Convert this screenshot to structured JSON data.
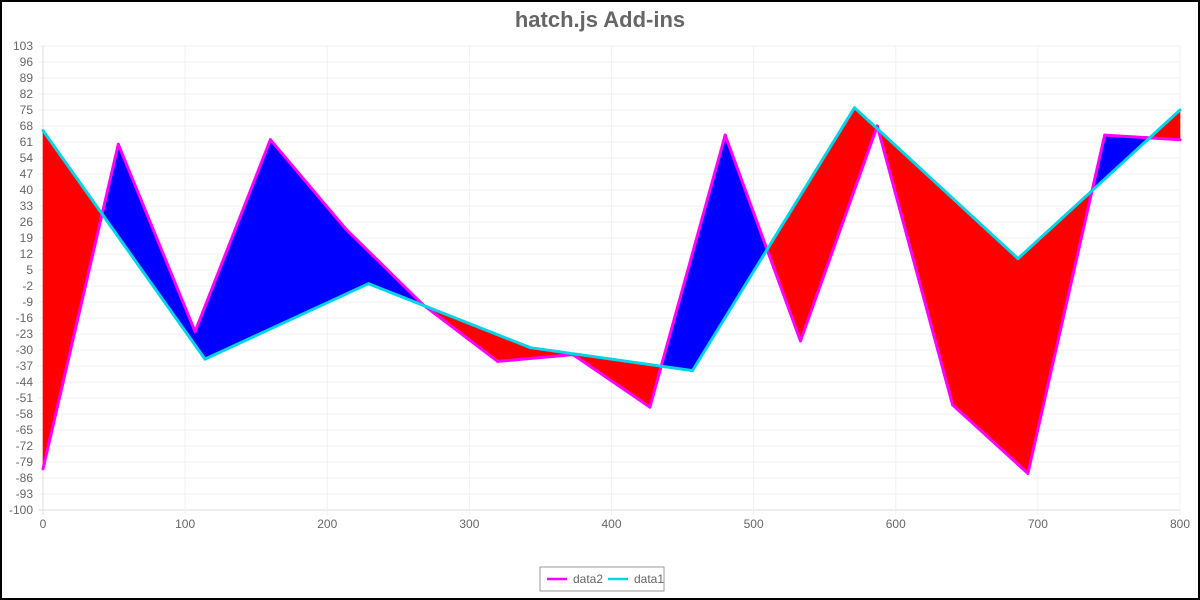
{
  "chart_data": {
    "type": "line",
    "title": "hatch.js Add-ins",
    "xlabel": "",
    "ylabel": "",
    "xlim": [
      0,
      800
    ],
    "ylim": [
      -100,
      103
    ],
    "x_ticks": [
      0,
      100,
      200,
      300,
      400,
      500,
      600,
      700,
      800
    ],
    "y_ticks": [
      103,
      96,
      89,
      82,
      75,
      68,
      61,
      54,
      47,
      40,
      33,
      26,
      19,
      12,
      5,
      -2,
      -9,
      -16,
      -23,
      -30,
      -37,
      -44,
      -51,
      -58,
      -65,
      -72,
      -79,
      -86,
      -93,
      -100
    ],
    "grid": true,
    "legend_position": "bottom",
    "fill_between": {
      "above_color": "#0000ff",
      "below_color": "#ff0000"
    },
    "series": [
      {
        "name": "data2",
        "color": "#ff00ff",
        "points": [
          {
            "x": 0,
            "y": -82
          },
          {
            "x": 53,
            "y": 60
          },
          {
            "x": 107,
            "y": -22
          },
          {
            "x": 160,
            "y": 62
          },
          {
            "x": 213,
            "y": 23
          },
          {
            "x": 267,
            "y": -10
          },
          {
            "x": 320,
            "y": -35
          },
          {
            "x": 373,
            "y": -32
          },
          {
            "x": 427,
            "y": -55
          },
          {
            "x": 480,
            "y": 64
          },
          {
            "x": 533,
            "y": -26
          },
          {
            "x": 587,
            "y": 68
          },
          {
            "x": 640,
            "y": -54
          },
          {
            "x": 693,
            "y": -84
          },
          {
            "x": 747,
            "y": 64
          },
          {
            "x": 800,
            "y": 62
          }
        ]
      },
      {
        "name": "data1",
        "color": "#00d5e8",
        "points": [
          {
            "x": 0,
            "y": 66
          },
          {
            "x": 114,
            "y": -34
          },
          {
            "x": 229,
            "y": -1
          },
          {
            "x": 343,
            "y": -29
          },
          {
            "x": 457,
            "y": -39
          },
          {
            "x": 571,
            "y": 76
          },
          {
            "x": 686,
            "y": 10
          },
          {
            "x": 800,
            "y": 75
          }
        ]
      }
    ]
  }
}
